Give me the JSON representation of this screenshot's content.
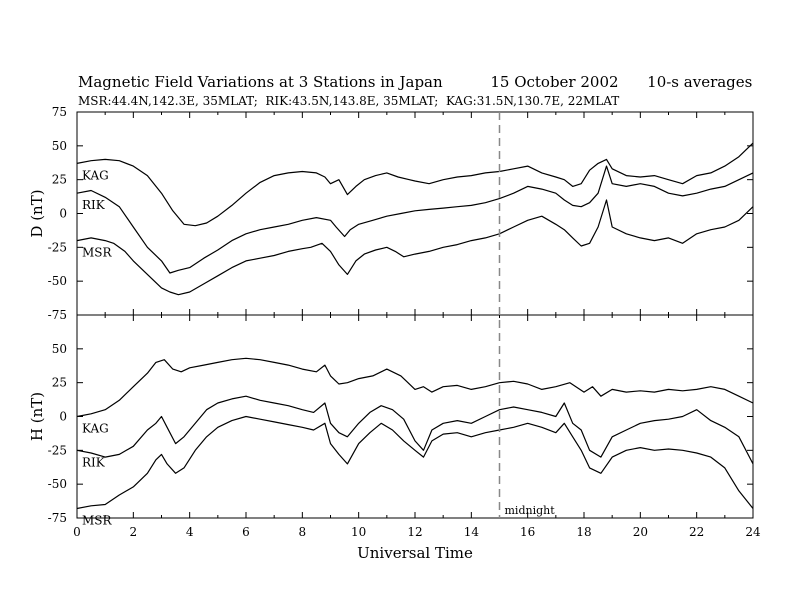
{
  "header": {
    "title": "Magnetic Field Variations at 3 Stations in Japan",
    "date": "15 October 2002",
    "averaging": "10-s averages",
    "subtitle": "MSR:44.4N,142.3E, 35MLAT;  RIK:43.5N,143.8E, 35MLAT;  KAG:31.5N,130.7E, 22MLAT"
  },
  "chart_data": [
    {
      "type": "line",
      "panel": "top",
      "ylabel": "D (nT)",
      "xlim": [
        0,
        24
      ],
      "ylim": [
        -75,
        75
      ],
      "yticks": [
        75,
        50,
        25,
        0,
        -25,
        -50,
        -75
      ],
      "line_color": "#000000",
      "series": [
        {
          "name": "KAG",
          "x": [
            0,
            0.5,
            1,
            1.5,
            2,
            2.5,
            3,
            3.4,
            3.8,
            4.2,
            4.6,
            5,
            5.5,
            6,
            6.5,
            7,
            7.5,
            8,
            8.5,
            8.8,
            9,
            9.3,
            9.6,
            9.9,
            10.2,
            10.6,
            11,
            11.4,
            11.8,
            12,
            12.5,
            13,
            13.5,
            14,
            14.5,
            15,
            15.5,
            16,
            16.5,
            17,
            17.3,
            17.6,
            17.9,
            18.2,
            18.5,
            18.8,
            19,
            19.5,
            20,
            20.5,
            21,
            21.5,
            22,
            22.5,
            23,
            23.5,
            24
          ],
          "values": [
            37,
            39,
            40,
            39,
            35,
            28,
            15,
            2,
            -8,
            -9,
            -7,
            -2,
            6,
            15,
            23,
            28,
            30,
            31,
            30,
            27,
            22,
            25,
            14,
            20,
            25,
            28,
            30,
            27,
            25,
            24,
            22,
            25,
            27,
            28,
            30,
            31,
            33,
            35,
            30,
            27,
            25,
            20,
            22,
            32,
            37,
            40,
            33,
            28,
            27,
            28,
            25,
            22,
            28,
            30,
            35,
            42,
            52
          ]
        },
        {
          "name": "RIK",
          "x": [
            0,
            0.5,
            1,
            1.5,
            2,
            2.5,
            3,
            3.3,
            3.6,
            4,
            4.5,
            5,
            5.5,
            6,
            6.5,
            7,
            7.5,
            8,
            8.5,
            9,
            9.2,
            9.5,
            9.7,
            10,
            10.5,
            11,
            11.5,
            12,
            12.5,
            13,
            13.5,
            14,
            14.5,
            15,
            15.5,
            16,
            16.5,
            17,
            17.3,
            17.6,
            17.9,
            18.2,
            18.5,
            18.8,
            19,
            19.5,
            20,
            20.5,
            21,
            21.5,
            22,
            22.5,
            23,
            23.5,
            24
          ],
          "values": [
            15,
            17,
            12,
            5,
            -10,
            -25,
            -35,
            -44,
            -42,
            -40,
            -33,
            -27,
            -20,
            -15,
            -12,
            -10,
            -8,
            -5,
            -3,
            -5,
            -10,
            -17,
            -12,
            -8,
            -5,
            -2,
            0,
            2,
            3,
            4,
            5,
            6,
            8,
            11,
            15,
            20,
            18,
            15,
            10,
            6,
            5,
            8,
            15,
            35,
            22,
            20,
            22,
            20,
            15,
            13,
            15,
            18,
            20,
            25,
            30
          ]
        },
        {
          "name": "MSR",
          "x": [
            0,
            0.5,
            1,
            1.3,
            1.7,
            2,
            2.5,
            3,
            3.3,
            3.6,
            4,
            4.5,
            5,
            5.5,
            6,
            6.5,
            7,
            7.5,
            8,
            8.3,
            8.7,
            9,
            9.3,
            9.6,
            9.9,
            10.2,
            10.6,
            11,
            11.3,
            11.6,
            12,
            12.5,
            13,
            13.5,
            14,
            14.5,
            15,
            15.5,
            16,
            16.5,
            17,
            17.3,
            17.6,
            17.9,
            18.2,
            18.5,
            18.8,
            19,
            19.5,
            20,
            20.5,
            21,
            21.5,
            22,
            22.5,
            23,
            23.5,
            24
          ],
          "values": [
            -20,
            -18,
            -20,
            -22,
            -28,
            -35,
            -45,
            -55,
            -58,
            -60,
            -58,
            -52,
            -46,
            -40,
            -35,
            -33,
            -31,
            -28,
            -26,
            -25,
            -22,
            -28,
            -38,
            -45,
            -35,
            -30,
            -27,
            -25,
            -28,
            -32,
            -30,
            -28,
            -25,
            -23,
            -20,
            -18,
            -15,
            -10,
            -5,
            -2,
            -8,
            -12,
            -18,
            -24,
            -22,
            -10,
            10,
            -10,
            -15,
            -18,
            -20,
            -18,
            -22,
            -15,
            -12,
            -10,
            -5,
            5
          ]
        }
      ]
    },
    {
      "type": "line",
      "panel": "bottom",
      "ylabel": "H (nT)",
      "xlabel": "Universal Time",
      "xlim": [
        0,
        24
      ],
      "ylim": [
        -75,
        75
      ],
      "xticks": [
        0,
        2,
        4,
        6,
        8,
        10,
        12,
        14,
        16,
        18,
        20,
        22,
        24
      ],
      "yticks": [
        50,
        25,
        0,
        -25,
        -50,
        -75
      ],
      "line_color": "#000000",
      "series": [
        {
          "name": "KAG",
          "x": [
            0,
            0.5,
            1,
            1.5,
            2,
            2.5,
            2.8,
            3.1,
            3.4,
            3.7,
            4,
            4.5,
            5,
            5.5,
            6,
            6.5,
            7,
            7.5,
            8,
            8.5,
            8.8,
            9,
            9.3,
            9.6,
            10,
            10.5,
            11,
            11.5,
            12,
            12.3,
            12.6,
            13,
            13.5,
            14,
            14.5,
            15,
            15.5,
            16,
            16.5,
            17,
            17.5,
            18,
            18.3,
            18.6,
            19,
            19.5,
            20,
            20.5,
            21,
            21.5,
            22,
            22.5,
            23,
            23.5,
            24
          ],
          "values": [
            0,
            2,
            5,
            12,
            22,
            32,
            40,
            42,
            35,
            33,
            36,
            38,
            40,
            42,
            43,
            42,
            40,
            38,
            35,
            33,
            38,
            30,
            24,
            25,
            28,
            30,
            35,
            30,
            20,
            22,
            18,
            22,
            23,
            20,
            22,
            25,
            26,
            24,
            20,
            22,
            25,
            18,
            22,
            15,
            20,
            18,
            19,
            18,
            20,
            19,
            20,
            22,
            20,
            15,
            10
          ]
        },
        {
          "name": "RIK",
          "x": [
            0,
            0.5,
            1,
            1.5,
            2,
            2.5,
            2.8,
            3,
            3.2,
            3.5,
            3.8,
            4.2,
            4.6,
            5,
            5.5,
            6,
            6.5,
            7,
            7.5,
            8,
            8.4,
            8.8,
            9,
            9.3,
            9.6,
            10,
            10.4,
            10.8,
            11.2,
            11.6,
            12,
            12.3,
            12.6,
            13,
            13.5,
            14,
            14.5,
            15,
            15.5,
            16,
            16.5,
            17,
            17.3,
            17.6,
            17.9,
            18.2,
            18.6,
            19,
            19.5,
            20,
            20.5,
            21,
            21.5,
            22,
            22.5,
            23,
            23.5,
            24
          ],
          "values": [
            -25,
            -27,
            -30,
            -28,
            -22,
            -10,
            -5,
            0,
            -8,
            -20,
            -15,
            -5,
            5,
            10,
            13,
            15,
            12,
            10,
            8,
            5,
            3,
            10,
            -5,
            -12,
            -15,
            -5,
            3,
            8,
            5,
            -2,
            -18,
            -25,
            -10,
            -5,
            -3,
            -5,
            0,
            5,
            7,
            5,
            3,
            0,
            10,
            -5,
            -10,
            -25,
            -30,
            -15,
            -10,
            -5,
            -3,
            -2,
            0,
            5,
            -3,
            -8,
            -15,
            -35
          ]
        },
        {
          "name": "MSR",
          "x": [
            0,
            0.5,
            1,
            1.5,
            2,
            2.5,
            2.8,
            3,
            3.2,
            3.5,
            3.8,
            4.2,
            4.6,
            5,
            5.5,
            6,
            6.5,
            7,
            7.5,
            8,
            8.4,
            8.8,
            9,
            9.3,
            9.6,
            10,
            10.4,
            10.8,
            11.2,
            11.6,
            12,
            12.3,
            12.6,
            13,
            13.5,
            14,
            14.5,
            15,
            15.5,
            16,
            16.5,
            17,
            17.3,
            17.6,
            17.9,
            18.2,
            18.6,
            19,
            19.5,
            20,
            20.5,
            21,
            21.5,
            22,
            22.5,
            23,
            23.5,
            24
          ],
          "values": [
            -68,
            -66,
            -65,
            -58,
            -52,
            -42,
            -32,
            -28,
            -35,
            -42,
            -38,
            -25,
            -15,
            -8,
            -3,
            0,
            -2,
            -4,
            -6,
            -8,
            -10,
            -5,
            -20,
            -28,
            -35,
            -20,
            -12,
            -5,
            -10,
            -18,
            -25,
            -30,
            -18,
            -13,
            -12,
            -15,
            -12,
            -10,
            -8,
            -5,
            -8,
            -12,
            -5,
            -15,
            -25,
            -38,
            -42,
            -30,
            -25,
            -23,
            -25,
            -24,
            -25,
            -27,
            -30,
            -38,
            -55,
            -68
          ]
        }
      ]
    }
  ],
  "annotations": {
    "midnight_label": "midnight",
    "midnight_ut": 15
  }
}
